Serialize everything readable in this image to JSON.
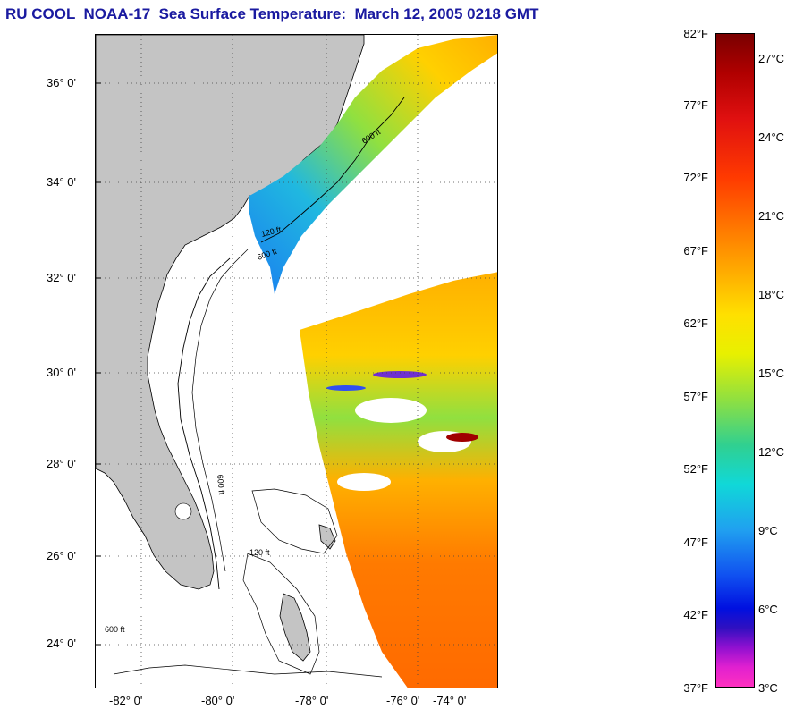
{
  "title": "RU COOL  NOAA-17  Sea Surface Temperature:  March 12, 2005 0218 GMT",
  "map": {
    "lat_labels": [
      "36° 0'",
      "34° 0'",
      "32° 0'",
      "30° 0'",
      "28° 0'",
      "26° 0'",
      "24° 0'"
    ],
    "lon_labels": [
      "-82° 0'",
      "-80° 0'",
      "-78° 0'",
      "-76° 0'",
      "-74° 0'"
    ],
    "contour_labels": [
      "600 ft",
      "120 ft",
      "600 ft",
      "600 ft",
      "600 ft",
      "120 ft"
    ],
    "land_color": "#c4c4c4",
    "grid": "dotted"
  },
  "colorbar": {
    "fahrenheit": [
      "82°F",
      "77°F",
      "72°F",
      "67°F",
      "62°F",
      "57°F",
      "52°F",
      "47°F",
      "42°F",
      "37°F"
    ],
    "celsius": [
      "27°C",
      "24°C",
      "21°C",
      "18°C",
      "15°C",
      "12°C",
      "9°C",
      "6°C",
      "3°C"
    ],
    "top_color": "#7a0000",
    "bottom_color": "#ff30c0"
  }
}
